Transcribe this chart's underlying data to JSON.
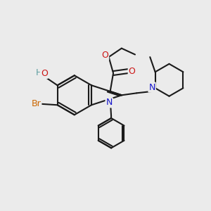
{
  "bg_color": "#ebebeb",
  "bond_color": "#1a1a1a",
  "bond_width": 1.5,
  "colors": {
    "C": "#1a1a1a",
    "N": "#1414cc",
    "O": "#cc1414",
    "Br": "#cc6600",
    "HO_H": "#5f9ea0",
    "HO_O": "#cc1414"
  }
}
